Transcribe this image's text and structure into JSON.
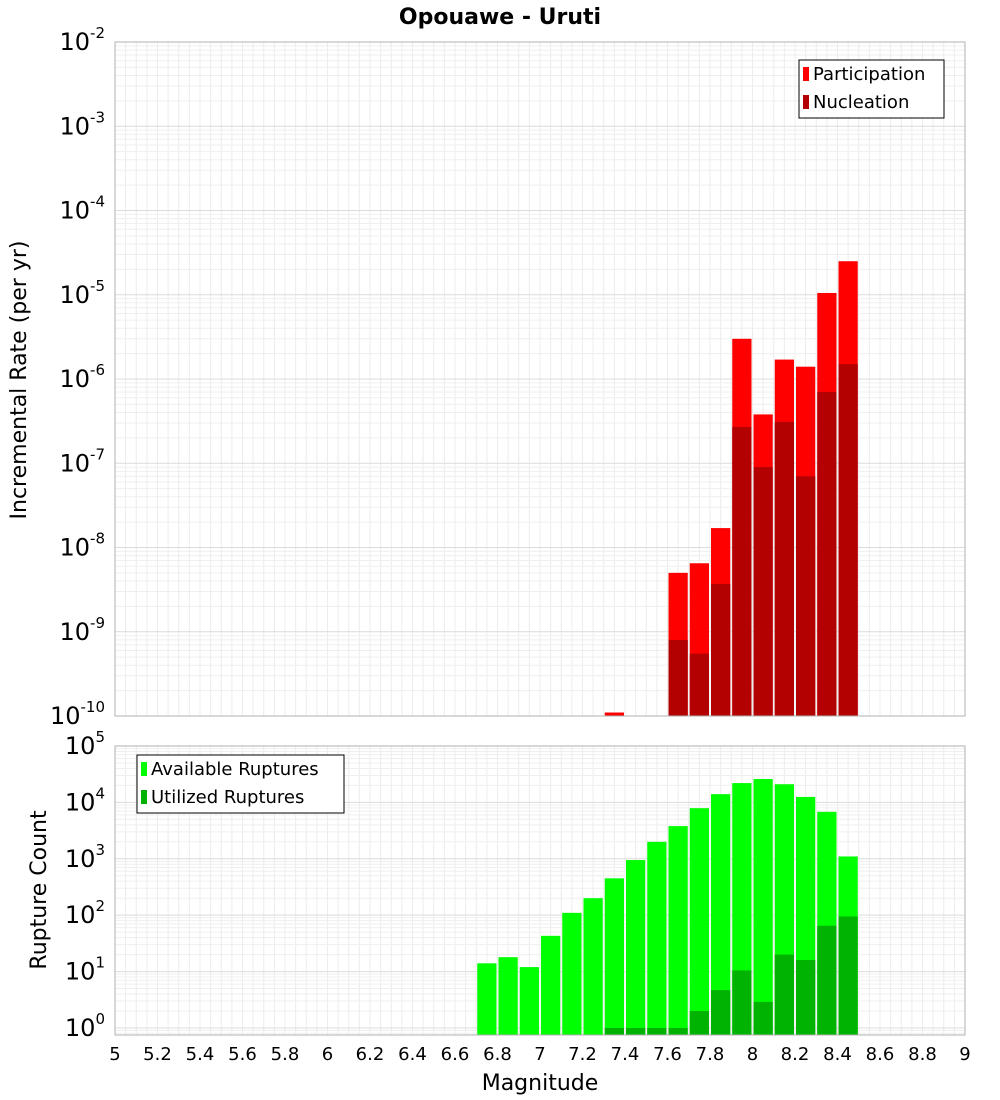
{
  "chart_data": [
    {
      "type": "bar",
      "title": "Opouawe - Uruti",
      "xlabel": "Magnitude",
      "ylabel": "Incremental Rate (per yr)",
      "yscale": "log",
      "xlim": [
        5,
        9
      ],
      "ylim": [
        1e-10,
        0.01
      ],
      "ytick_exponents": [
        -10,
        -9,
        -8,
        -7,
        -6,
        -5,
        -4,
        -3,
        -2
      ],
      "legend": {
        "position": "top-right",
        "entries": [
          "Participation",
          "Nucleation"
        ]
      },
      "series": [
        {
          "name": "Participation",
          "color": "#ff0000",
          "x": [
            7.35,
            7.65,
            7.75,
            7.85,
            7.95,
            8.05,
            8.15,
            8.25,
            8.35,
            8.45
          ],
          "values": [
            1.1e-10,
            5e-09,
            6.5e-09,
            1.7e-08,
            3e-06,
            3.8e-07,
            1.7e-06,
            1.4e-06,
            1.05e-05,
            2.5e-05
          ]
        },
        {
          "name": "Nucleation",
          "color": "#b30000",
          "x": [
            7.65,
            7.75,
            7.85,
            7.95,
            8.05,
            8.15,
            8.25,
            8.35,
            8.45
          ],
          "values": [
            8e-10,
            5.5e-10,
            3.7e-09,
            2.7e-07,
            9e-08,
            3.1e-07,
            7e-08,
            7e-07,
            1.5e-06
          ]
        }
      ]
    },
    {
      "type": "bar",
      "title": "",
      "xlabel": "Magnitude",
      "ylabel": "Rupture Count",
      "yscale": "log",
      "xlim": [
        5,
        9
      ],
      "ylim": [
        0.75,
        100000
      ],
      "ytick_exponents": [
        0,
        1,
        2,
        3,
        4,
        5
      ],
      "xticks": [
        "5",
        "5.2",
        "5.4",
        "5.6",
        "5.8",
        "6",
        "6.2",
        "6.4",
        "6.6",
        "6.8",
        "7",
        "7.2",
        "7.4",
        "7.6",
        "7.8",
        "8",
        "8.2",
        "8.4",
        "8.6",
        "8.8",
        "9"
      ],
      "legend": {
        "position": "top-left",
        "entries": [
          "Available Ruptures",
          "Utilized Ruptures"
        ]
      },
      "series": [
        {
          "name": "Available Ruptures",
          "color": "#00ff00",
          "x": [
            6.75,
            6.85,
            6.95,
            7.05,
            7.15,
            7.25,
            7.35,
            7.45,
            7.55,
            7.65,
            7.75,
            7.85,
            7.95,
            8.05,
            8.15,
            8.25,
            8.35,
            8.45
          ],
          "values": [
            14,
            18,
            12,
            43,
            110,
            200,
            450,
            950,
            2000,
            3800,
            7900,
            14000,
            22000,
            26000,
            21000,
            12500,
            6800,
            1100
          ]
        },
        {
          "name": "Utilized Ruptures",
          "color": "#00b300",
          "x": [
            7.35,
            7.45,
            7.55,
            7.65,
            7.75,
            7.85,
            7.95,
            8.05,
            8.15,
            8.25,
            8.35,
            8.45
          ],
          "values": [
            1,
            1,
            1,
            1,
            2,
            4.7,
            10.5,
            2.9,
            20,
            16,
            65,
            95
          ]
        }
      ]
    }
  ]
}
